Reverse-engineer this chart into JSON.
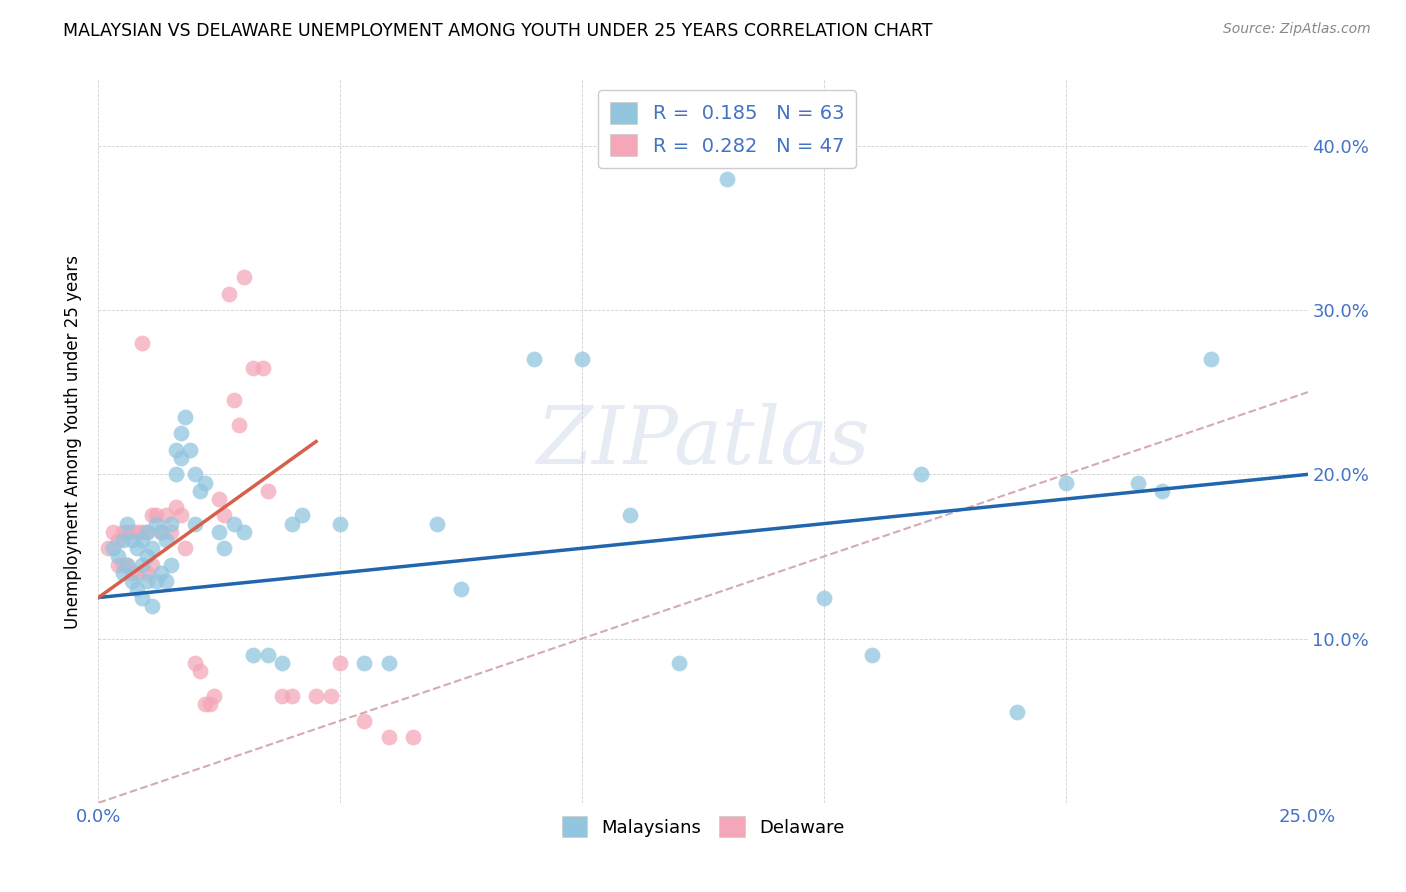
{
  "title": "MALAYSIAN VS DELAWARE UNEMPLOYMENT AMONG YOUTH UNDER 25 YEARS CORRELATION CHART",
  "source": "Source: ZipAtlas.com",
  "ylabel": "Unemployment Among Youth under 25 years",
  "xlim": [
    0.0,
    0.25
  ],
  "ylim": [
    0.0,
    0.44
  ],
  "xtick_vals": [
    0.0,
    0.05,
    0.1,
    0.15,
    0.2,
    0.25
  ],
  "ytick_vals": [
    0.0,
    0.1,
    0.2,
    0.3,
    0.4
  ],
  "R_malaysian": 0.185,
  "N_malaysian": 63,
  "R_delaware": 0.282,
  "N_delaware": 47,
  "blue_scatter_color": "#92c5de",
  "pink_scatter_color": "#f4a7b9",
  "blue_line_color": "#2166ac",
  "pink_line_color": "#d6604d",
  "diagonal_line_color": "#d4aab5",
  "background_color": "#ffffff",
  "tick_label_color": "#4472c4",
  "watermark_text": "ZIPatlas",
  "malaysians_x": [
    0.003,
    0.004,
    0.005,
    0.005,
    0.006,
    0.006,
    0.007,
    0.007,
    0.008,
    0.008,
    0.009,
    0.009,
    0.009,
    0.01,
    0.01,
    0.01,
    0.011,
    0.011,
    0.012,
    0.012,
    0.013,
    0.013,
    0.014,
    0.014,
    0.015,
    0.015,
    0.016,
    0.016,
    0.017,
    0.017,
    0.018,
    0.019,
    0.02,
    0.02,
    0.021,
    0.022,
    0.025,
    0.026,
    0.028,
    0.03,
    0.032,
    0.035,
    0.038,
    0.04,
    0.042,
    0.05,
    0.055,
    0.06,
    0.07,
    0.075,
    0.09,
    0.1,
    0.11,
    0.12,
    0.13,
    0.15,
    0.16,
    0.17,
    0.19,
    0.2,
    0.215,
    0.22,
    0.23
  ],
  "malaysians_y": [
    0.155,
    0.15,
    0.16,
    0.14,
    0.17,
    0.145,
    0.16,
    0.135,
    0.155,
    0.13,
    0.16,
    0.145,
    0.125,
    0.165,
    0.15,
    0.135,
    0.155,
    0.12,
    0.17,
    0.135,
    0.165,
    0.14,
    0.16,
    0.135,
    0.17,
    0.145,
    0.215,
    0.2,
    0.225,
    0.21,
    0.235,
    0.215,
    0.2,
    0.17,
    0.19,
    0.195,
    0.165,
    0.155,
    0.17,
    0.165,
    0.09,
    0.09,
    0.085,
    0.17,
    0.175,
    0.17,
    0.085,
    0.085,
    0.17,
    0.13,
    0.27,
    0.27,
    0.175,
    0.085,
    0.38,
    0.125,
    0.09,
    0.2,
    0.055,
    0.195,
    0.195,
    0.19,
    0.27
  ],
  "delaware_x": [
    0.002,
    0.003,
    0.004,
    0.004,
    0.005,
    0.005,
    0.006,
    0.006,
    0.007,
    0.007,
    0.008,
    0.008,
    0.009,
    0.009,
    0.01,
    0.01,
    0.011,
    0.011,
    0.012,
    0.013,
    0.014,
    0.015,
    0.016,
    0.017,
    0.018,
    0.02,
    0.021,
    0.022,
    0.023,
    0.024,
    0.025,
    0.026,
    0.027,
    0.028,
    0.029,
    0.03,
    0.032,
    0.034,
    0.035,
    0.038,
    0.04,
    0.045,
    0.048,
    0.05,
    0.055,
    0.06,
    0.065
  ],
  "delaware_y": [
    0.155,
    0.165,
    0.16,
    0.145,
    0.165,
    0.145,
    0.165,
    0.145,
    0.165,
    0.14,
    0.165,
    0.14,
    0.28,
    0.165,
    0.165,
    0.14,
    0.175,
    0.145,
    0.175,
    0.165,
    0.175,
    0.165,
    0.18,
    0.175,
    0.155,
    0.085,
    0.08,
    0.06,
    0.06,
    0.065,
    0.185,
    0.175,
    0.31,
    0.245,
    0.23,
    0.32,
    0.265,
    0.265,
    0.19,
    0.065,
    0.065,
    0.065,
    0.065,
    0.085,
    0.05,
    0.04,
    0.04
  ],
  "blue_trendline_x0": 0.0,
  "blue_trendline_x1": 0.25,
  "blue_trendline_y0": 0.125,
  "blue_trendline_y1": 0.2,
  "pink_trendline_x0": 0.0,
  "pink_trendline_x1": 0.045,
  "pink_trendline_y0": 0.125,
  "pink_trendline_y1": 0.22
}
